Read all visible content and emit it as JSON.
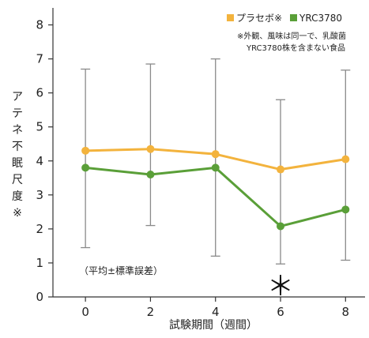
{
  "chart_data": {
    "type": "line",
    "x": [
      0,
      2,
      4,
      6,
      8
    ],
    "xlabel": "試験期間（週間）",
    "ylabel": "アテネ不眠尺度※",
    "ylim": [
      0,
      8.5
    ],
    "yticks": [
      0,
      1,
      2,
      3,
      4,
      5,
      6,
      7,
      8
    ],
    "xlim": [
      -1.0,
      8.6
    ],
    "grid": false,
    "legend_position": "top-right",
    "series": [
      {
        "name": "プラセボ※",
        "color": "#f3b33d",
        "values": [
          4.3,
          4.35,
          4.2,
          3.75,
          4.05
        ]
      },
      {
        "name": "YRC3780",
        "color": "#5a9f38",
        "values": [
          3.8,
          3.6,
          3.8,
          2.08,
          2.57
        ],
        "error_upper": [
          6.7,
          6.85,
          7.0,
          5.8,
          6.67
        ],
        "error_lower": [
          1.45,
          2.1,
          1.2,
          0.97,
          1.08
        ]
      }
    ],
    "annotations": {
      "footnote_line1": "※外観、風味は同一で、乳酸菌",
      "footnote_line2": "YRC3780株を含まない食品",
      "error_note": "（平均±標準誤差）",
      "significance_marker": "＊",
      "significance_x": 6
    }
  }
}
